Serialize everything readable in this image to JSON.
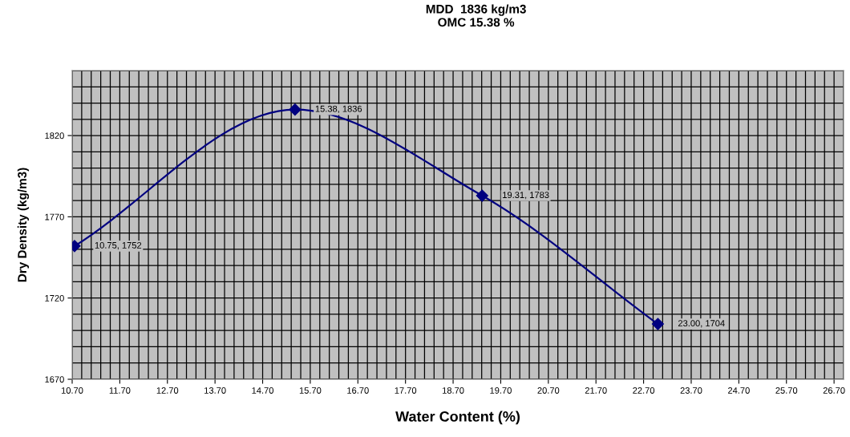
{
  "chart_data": {
    "type": "line",
    "title": "MDD  1836 kg/m3\nOMC 15.38 %",
    "xlabel": "Water Content (%)",
    "ylabel": "Dry Density (kg/m3)",
    "x": [
      10.75,
      15.38,
      19.31,
      23.0
    ],
    "series": [
      {
        "color": "#000080",
        "values": [
          1752,
          1836,
          1783,
          1704
        ]
      }
    ],
    "marker": "diamond",
    "line_style": "solid",
    "grid": true,
    "xlim": [
      10.7,
      26.9
    ],
    "ylim": [
      1670,
      1860
    ],
    "xticks": [
      {
        "value": 10.7,
        "label": "10.70"
      },
      {
        "value": 10.9,
        "label": null
      },
      {
        "value": 11.1,
        "label": null
      },
      {
        "value": 11.3,
        "label": null
      },
      {
        "value": 11.5,
        "label": null
      },
      {
        "value": 11.7,
        "label": "11.70"
      },
      {
        "value": 11.9,
        "label": null
      },
      {
        "value": 12.1,
        "label": null
      },
      {
        "value": 12.3,
        "label": null
      },
      {
        "value": 12.5,
        "label": null
      },
      {
        "value": 12.7,
        "label": "12.70"
      },
      {
        "value": 12.9,
        "label": null
      },
      {
        "value": 13.1,
        "label": null
      },
      {
        "value": 13.3,
        "label": null
      },
      {
        "value": 13.5,
        "label": null
      },
      {
        "value": 13.7,
        "label": "13.70"
      },
      {
        "value": 13.9,
        "label": null
      },
      {
        "value": 14.1,
        "label": null
      },
      {
        "value": 14.3,
        "label": null
      },
      {
        "value": 14.5,
        "label": null
      },
      {
        "value": 14.7,
        "label": "14.70"
      },
      {
        "value": 14.9,
        "label": null
      },
      {
        "value": 15.1,
        "label": null
      },
      {
        "value": 15.3,
        "label": null
      },
      {
        "value": 15.5,
        "label": null
      },
      {
        "value": 15.7,
        "label": "15.70"
      },
      {
        "value": 15.9,
        "label": null
      },
      {
        "value": 16.1,
        "label": null
      },
      {
        "value": 16.3,
        "label": null
      },
      {
        "value": 16.5,
        "label": null
      },
      {
        "value": 16.7,
        "label": "16.70"
      },
      {
        "value": 16.9,
        "label": null
      },
      {
        "value": 17.1,
        "label": null
      },
      {
        "value": 17.3,
        "label": null
      },
      {
        "value": 17.5,
        "label": null
      },
      {
        "value": 17.7,
        "label": "17.70"
      },
      {
        "value": 17.9,
        "label": null
      },
      {
        "value": 18.1,
        "label": null
      },
      {
        "value": 18.3,
        "label": null
      },
      {
        "value": 18.5,
        "label": null
      },
      {
        "value": 18.7,
        "label": "18.70"
      },
      {
        "value": 18.9,
        "label": null
      },
      {
        "value": 19.1,
        "label": null
      },
      {
        "value": 19.3,
        "label": null
      },
      {
        "value": 19.5,
        "label": null
      },
      {
        "value": 19.7,
        "label": "19.70"
      },
      {
        "value": 19.9,
        "label": null
      },
      {
        "value": 20.1,
        "label": null
      },
      {
        "value": 20.3,
        "label": null
      },
      {
        "value": 20.5,
        "label": null
      },
      {
        "value": 20.7,
        "label": "20.70"
      },
      {
        "value": 20.9,
        "label": null
      },
      {
        "value": 21.1,
        "label": null
      },
      {
        "value": 21.3,
        "label": null
      },
      {
        "value": 21.5,
        "label": null
      },
      {
        "value": 21.7,
        "label": "21.70"
      },
      {
        "value": 21.9,
        "label": null
      },
      {
        "value": 22.1,
        "label": null
      },
      {
        "value": 22.3,
        "label": null
      },
      {
        "value": 22.5,
        "label": null
      },
      {
        "value": 22.7,
        "label": "22.70"
      },
      {
        "value": 22.9,
        "label": null
      },
      {
        "value": 23.1,
        "label": null
      },
      {
        "value": 23.3,
        "label": null
      },
      {
        "value": 23.5,
        "label": null
      },
      {
        "value": 23.7,
        "label": "23.70"
      },
      {
        "value": 23.9,
        "label": null
      },
      {
        "value": 24.1,
        "label": null
      },
      {
        "value": 24.3,
        "label": null
      },
      {
        "value": 24.5,
        "label": null
      },
      {
        "value": 24.7,
        "label": "24.70"
      },
      {
        "value": 24.9,
        "label": null
      },
      {
        "value": 25.1,
        "label": null
      },
      {
        "value": 25.3,
        "label": null
      },
      {
        "value": 25.5,
        "label": null
      },
      {
        "value": 25.7,
        "label": "25.70"
      },
      {
        "value": 25.9,
        "label": null
      },
      {
        "value": 26.1,
        "label": null
      },
      {
        "value": 26.3,
        "label": null
      },
      {
        "value": 26.5,
        "label": null
      },
      {
        "value": 26.7,
        "label": "26.70"
      },
      {
        "value": 26.9,
        "label": null
      }
    ],
    "yticks": [
      1670,
      {
        "value": 1680,
        "label": null
      },
      {
        "value": 1690,
        "label": null
      },
      {
        "value": 1700,
        "label": null
      },
      {
        "value": 1710,
        "label": null
      },
      1720,
      {
        "value": 1730,
        "label": null
      },
      {
        "value": 1740,
        "label": null
      },
      {
        "value": 1750,
        "label": null
      },
      {
        "value": 1760,
        "label": null
      },
      1770,
      {
        "value": 1780,
        "label": null
      },
      {
        "value": 1790,
        "label": null
      },
      {
        "value": 1800,
        "label": null
      },
      {
        "value": 1810,
        "label": null
      },
      1820,
      {
        "value": 1830,
        "label": null
      },
      {
        "value": 1840,
        "label": null
      },
      {
        "value": 1850,
        "label": null
      },
      {
        "value": 1860,
        "label": null
      }
    ],
    "annotations": [
      {
        "text": "10.75, 1752",
        "x": 10.75,
        "y": 1752
      },
      {
        "text": "15.38, 1836",
        "x": 15.38,
        "y": 1836
      },
      {
        "text": "19.31, 1783",
        "x": 19.31,
        "y": 1783
      },
      {
        "text": "23.00, 1704",
        "x": 23.0,
        "y": 1704
      }
    ]
  }
}
